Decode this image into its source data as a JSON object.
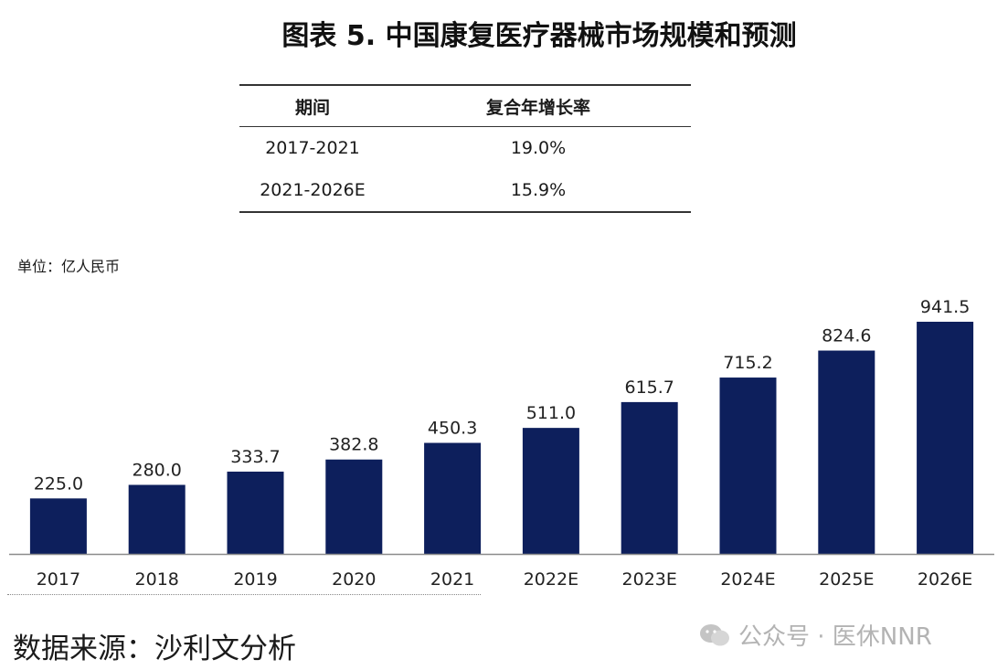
{
  "title": "图表 5. 中国康复医疗器械市场规模和预测",
  "table": {
    "headers": [
      "期间",
      "复合年增长率"
    ],
    "rows": [
      {
        "period": "2017-2021",
        "cagr": "19.0%"
      },
      {
        "period": "2021-2026E",
        "cagr": "15.9%"
      }
    ]
  },
  "unit_label": "单位：亿人民币",
  "chart_data": {
    "type": "bar",
    "categories": [
      "2017",
      "2018",
      "2019",
      "2020",
      "2021",
      "2022E",
      "2023E",
      "2024E",
      "2025E",
      "2026E"
    ],
    "values": [
      225.0,
      280.0,
      333.7,
      382.8,
      450.3,
      511.0,
      615.7,
      715.2,
      824.6,
      941.5
    ],
    "data_labels": [
      "225.0",
      "280.0",
      "333.7",
      "382.8",
      "450.3",
      "511.0",
      "615.7",
      "715.2",
      "824.6",
      "941.5"
    ],
    "bar_color": "#0d1f5c",
    "ylim": [
      0,
      941.5
    ],
    "grid": false,
    "legend": "none"
  },
  "source": "数据来源：沙利文分析",
  "watermark": "公众号 · 医休NNR",
  "icons": {
    "watermark": "wechat-icon"
  }
}
